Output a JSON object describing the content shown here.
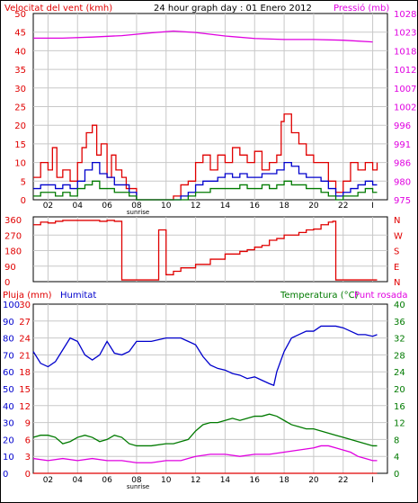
{
  "colors": {
    "red": "#e00000",
    "magenta": "#e000e0",
    "blue": "#0000cc",
    "green": "#007a00",
    "gray": "#c8c8c8",
    "black": "#000000"
  },
  "chart_data": [
    {
      "type": "line",
      "title": "24 hour graph day : 01 Enero 2012",
      "left_axis_title": "Velocitat del vent (kmh)",
      "right_axis_title": "Pressió (mb)",
      "x_ticks": [
        "02",
        "04",
        "06",
        "08",
        "10",
        "12",
        "14",
        "16",
        "18",
        "20",
        "22",
        "I"
      ],
      "x_annotation": "sunrise",
      "y_left_ticks": [
        "0",
        "5",
        "10",
        "15",
        "20",
        "25",
        "30",
        "35",
        "40",
        "45",
        "50"
      ],
      "y_left_range": [
        0,
        50
      ],
      "y_right_ticks": [
        "975",
        "980",
        "986",
        "991",
        "996",
        "1002",
        "1007",
        "1012",
        "1018",
        "1023",
        "1028"
      ],
      "y_right_range": [
        975,
        1028
      ],
      "grid": true,
      "series": [
        {
          "name": "Pressió (mb)",
          "color": "magenta",
          "axis": "right",
          "x": [
            0,
            2,
            4,
            6,
            8,
            9.5,
            11,
            13,
            15,
            17,
            19,
            21,
            23
          ],
          "y": [
            1021,
            1021,
            1021.3,
            1021.7,
            1022.5,
            1023,
            1022.6,
            1021.6,
            1020.9,
            1020.6,
            1020.6,
            1020.4,
            1019.9
          ]
        },
        {
          "name": "Ratxa (kmh)",
          "color": "red",
          "axis": "left",
          "x": [
            0,
            0.5,
            1,
            1.3,
            1.6,
            2,
            2.5,
            3,
            3.3,
            3.6,
            4,
            4.3,
            4.6,
            5,
            5.3,
            5.6,
            6,
            6.3,
            7,
            8,
            9,
            9.5,
            10,
            10.5,
            11,
            11.5,
            12,
            12.5,
            13,
            13.5,
            14,
            14.5,
            15,
            15.5,
            16,
            16.5,
            16.8,
            17,
            17.5,
            18,
            18.5,
            19,
            19.5,
            20,
            20.5,
            21,
            21.5,
            22,
            22.5,
            23,
            23.3
          ],
          "y": [
            6,
            10,
            8,
            14,
            6,
            8,
            5,
            10,
            14,
            18,
            20,
            12,
            15,
            6,
            12,
            8,
            6,
            3,
            0,
            0,
            0,
            1,
            4,
            5,
            10,
            12,
            8,
            12,
            10,
            14,
            12,
            10,
            13,
            8,
            10,
            12,
            21,
            23,
            18,
            15,
            12,
            10,
            10,
            5,
            2,
            5,
            10,
            8,
            10,
            8,
            10
          ]
        },
        {
          "name": "Velocitat (kmh)",
          "color": "blue",
          "axis": "left",
          "x": [
            0,
            0.5,
            1,
            1.5,
            2,
            2.5,
            3,
            3.5,
            4,
            4.5,
            5,
            5.5,
            6,
            6.5,
            7,
            8,
            9,
            9.5,
            10,
            10.5,
            11,
            11.5,
            12,
            12.5,
            13,
            13.5,
            14,
            14.5,
            15,
            15.5,
            16,
            16.5,
            17,
            17.5,
            18,
            18.5,
            19,
            19.5,
            20,
            20.5,
            21,
            21.5,
            22,
            22.5,
            23,
            23.3
          ],
          "y": [
            3,
            4,
            4,
            3,
            4,
            3,
            5,
            8,
            10,
            7,
            6,
            4,
            4,
            2,
            0,
            0,
            0,
            0,
            1,
            2,
            4,
            5,
            5,
            6,
            7,
            6,
            7,
            6,
            6,
            7,
            7,
            8,
            10,
            9,
            7,
            6,
            6,
            5,
            3,
            1,
            2,
            3,
            4,
            5,
            4,
            4
          ]
        },
        {
          "name": "Mitjana (kmh)",
          "color": "green",
          "axis": "left",
          "x": [
            0,
            0.5,
            1,
            1.5,
            2,
            2.5,
            3,
            3.5,
            4,
            4.5,
            5,
            5.5,
            6,
            6.5,
            7,
            8,
            9,
            9.5,
            10,
            10.5,
            11,
            11.5,
            12,
            12.5,
            13,
            13.5,
            14,
            14.5,
            15,
            15.5,
            16,
            16.5,
            17,
            17.5,
            18,
            18.5,
            19,
            19.5,
            20,
            20.5,
            21,
            21.5,
            22,
            22.5,
            23,
            23.3
          ],
          "y": [
            1,
            2,
            2,
            1,
            2,
            1,
            3,
            4,
            5,
            3,
            3,
            2,
            2,
            1,
            0,
            0,
            0,
            0,
            0,
            1,
            2,
            2,
            3,
            3,
            3,
            3,
            4,
            3,
            3,
            4,
            3,
            4,
            5,
            4,
            4,
            3,
            3,
            2,
            1,
            0,
            1,
            1,
            2,
            3,
            2,
            2
          ]
        }
      ]
    },
    {
      "type": "line",
      "left_axis_title": "",
      "right_axis_labels": [
        "N",
        "W",
        "S",
        "E",
        "N"
      ],
      "y_left_ticks": [
        "0",
        "90",
        "180",
        "270",
        "360"
      ],
      "y_range": [
        0,
        360
      ],
      "series": [
        {
          "name": "Direcció del vent",
          "color": "red",
          "x": [
            0,
            0.5,
            1,
            1.5,
            2,
            3,
            4,
            4.5,
            5,
            5.5,
            6,
            7,
            8,
            8.5,
            9,
            9.5,
            10,
            11,
            12,
            13,
            14,
            14.5,
            15,
            15.5,
            16,
            16.5,
            17,
            18,
            18.5,
            19,
            19.5,
            20,
            20.3,
            20.5,
            21,
            22,
            23,
            23.3
          ],
          "y": [
            330,
            345,
            340,
            350,
            355,
            355,
            355,
            350,
            355,
            350,
            10,
            10,
            10,
            300,
            40,
            60,
            80,
            100,
            130,
            160,
            175,
            185,
            200,
            210,
            240,
            250,
            270,
            285,
            300,
            305,
            330,
            345,
            350,
            10,
            10,
            10,
            10,
            10
          ]
        }
      ]
    },
    {
      "type": "line",
      "left_axis_title_1": "Pluja (mm)",
      "left_axis_title_2": "Humitat",
      "right_axis_title_1": "Temperatura (°C)",
      "right_axis_title_2": "Punt rosada",
      "y_left_ticks_1": [
        "0",
        "10",
        "20",
        "30",
        "40",
        "50",
        "60",
        "70",
        "80",
        "90",
        "100"
      ],
      "y_left_ticks_2": [
        "0",
        "3",
        "6",
        "9",
        "12",
        "15",
        "18",
        "21",
        "24",
        "27",
        "30"
      ],
      "y_right_ticks": [
        "0",
        "4",
        "8",
        "12",
        "16",
        "20",
        "24",
        "28",
        "32",
        "36",
        "40"
      ],
      "y_right_range": [
        0,
        40
      ],
      "series": [
        {
          "name": "Humitat",
          "color": "blue",
          "axis": "left",
          "x": [
            0,
            0.5,
            1,
            1.5,
            2,
            2.5,
            3,
            3.5,
            4,
            4.5,
            5,
            5.5,
            6,
            6.5,
            7,
            8,
            9,
            9.5,
            10,
            10.5,
            11,
            11.5,
            12,
            12.5,
            13,
            13.5,
            14,
            14.5,
            15,
            15.5,
            16,
            16.3,
            16.5,
            17,
            17.5,
            18,
            18.5,
            19,
            19.5,
            20,
            20.5,
            21,
            21.5,
            22,
            22.5,
            23,
            23.3
          ],
          "y": [
            72,
            65,
            63,
            66,
            73,
            80,
            78,
            70,
            67,
            70,
            78,
            71,
            70,
            72,
            78,
            78,
            80,
            80,
            80,
            78,
            76,
            69,
            64,
            62,
            61,
            59,
            58,
            56,
            57,
            55,
            53,
            52,
            60,
            72,
            80,
            82,
            84,
            84,
            87,
            87,
            87,
            86,
            84,
            82,
            82,
            81,
            82
          ]
        },
        {
          "name": "Temperatura (°C)",
          "color": "green",
          "axis": "right",
          "x": [
            0,
            0.5,
            1,
            1.5,
            2,
            2.5,
            3,
            3.5,
            4,
            4.5,
            5,
            5.5,
            6,
            6.5,
            7,
            8,
            9,
            9.5,
            10,
            10.5,
            11,
            11.5,
            12,
            12.5,
            13,
            13.5,
            14,
            14.5,
            15,
            15.5,
            16,
            16.5,
            17,
            17.5,
            18,
            18.5,
            19,
            19.5,
            20,
            20.5,
            21,
            21.5,
            22,
            22.5,
            23,
            23.3
          ],
          "y": [
            8.5,
            9,
            9,
            8.5,
            7,
            7.5,
            8.5,
            9,
            8.5,
            7.5,
            8,
            9,
            8.5,
            7,
            6.5,
            6.5,
            7,
            7,
            7.5,
            8,
            10,
            11.5,
            12,
            12,
            12.5,
            13,
            12.5,
            13,
            13.5,
            13.5,
            14,
            13.5,
            12.5,
            11.5,
            11,
            10.5,
            10.5,
            10,
            9.5,
            9,
            8.5,
            8,
            7.5,
            7,
            6.5,
            6.5
          ]
        },
        {
          "name": "Punt rosada",
          "color": "magenta",
          "axis": "right",
          "x": [
            0,
            1,
            2,
            3,
            4,
            5,
            6,
            7,
            8,
            9,
            10,
            10.5,
            11,
            12,
            13,
            14,
            15,
            16,
            17,
            18,
            19,
            19.5,
            20,
            20.5,
            21,
            21.5,
            22,
            22.5,
            23,
            23.3
          ],
          "y": [
            3.5,
            3,
            3.5,
            3,
            3.5,
            3,
            3,
            2.5,
            2.5,
            3,
            3,
            3.5,
            4,
            4.5,
            4.5,
            4,
            4.5,
            4.5,
            5,
            5.5,
            6,
            6.5,
            6.5,
            6,
            5.5,
            5,
            4,
            3.5,
            3,
            3
          ]
        },
        {
          "name": "Pluja (mm)",
          "color": "red",
          "axis": "left",
          "x": [
            0,
            23.3
          ],
          "y": [
            0,
            0
          ]
        }
      ]
    }
  ]
}
